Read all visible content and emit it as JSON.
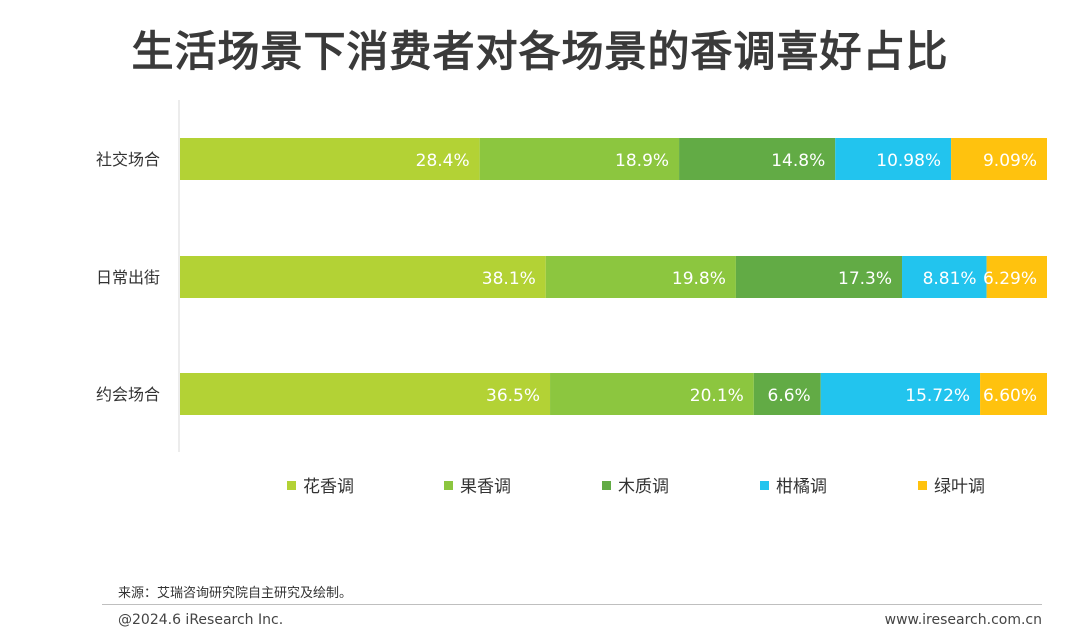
{
  "title": "生活场景下消费者对各场景的香调喜好占比",
  "source": "来源：艾瑞咨询研究院自主研究及绘制。",
  "copyright": "@2024.6 iResearch Inc.",
  "website": "www.iresearch.com.cn",
  "chart_data": {
    "type": "bar",
    "orientation": "horizontal",
    "stacked": true,
    "categories": [
      "社交场合",
      "日常出街",
      "约会场合"
    ],
    "series": [
      {
        "name": "花香调",
        "color": "#b3d235",
        "values": [
          28.4,
          38.1,
          36.5
        ],
        "labels": [
          "28.4%",
          "38.1%",
          "36.5%"
        ]
      },
      {
        "name": "果香调",
        "color": "#8cc63f",
        "values": [
          18.9,
          19.8,
          20.1
        ],
        "labels": [
          "18.9%",
          "19.8%",
          "20.1%"
        ]
      },
      {
        "name": "木质调",
        "color": "#62ab45",
        "values": [
          14.8,
          17.3,
          6.6
        ],
        "labels": [
          "14.8%",
          "17.3%",
          "6.6%"
        ]
      },
      {
        "name": "柑橘调",
        "color": "#22c4ee",
        "values": [
          10.98,
          8.81,
          15.72
        ],
        "labels": [
          "10.98%",
          "8.81%",
          "15.72%"
        ]
      },
      {
        "name": "绿叶调",
        "color": "#ffc20e",
        "values": [
          9.09,
          6.29,
          6.6
        ],
        "labels": [
          "9.09%",
          "6.29%",
          "6.60%"
        ]
      }
    ],
    "legend_position": "bottom",
    "grid": false
  }
}
